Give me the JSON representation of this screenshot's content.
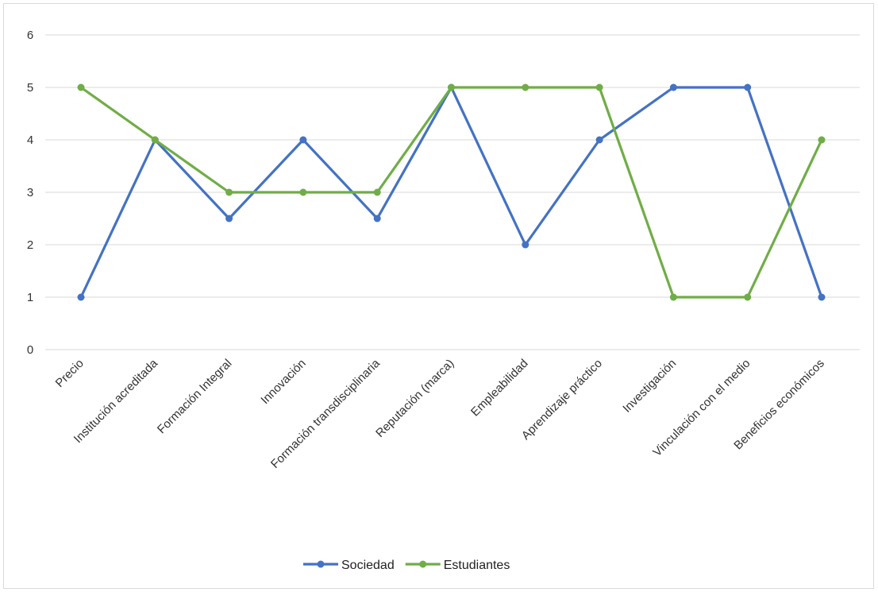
{
  "chart_data": {
    "type": "line",
    "title": "",
    "xlabel": "",
    "ylabel": "",
    "categories": [
      "Precio",
      "Institución acreditada",
      "Formación Integral",
      "Innovación",
      "Formación transdisciplinaria",
      "Reputación (marca)",
      "Empleabilidad",
      "Aprendizaje práctico",
      "Investigación",
      "Vinculación con el medio",
      "Beneficios económicos"
    ],
    "series": [
      {
        "name": "Sociedad",
        "color": "#4472c4",
        "values": [
          1,
          4,
          2.5,
          4,
          2.5,
          5,
          2,
          4,
          5,
          5,
          1
        ]
      },
      {
        "name": "Estudiantes",
        "color": "#70ad47",
        "values": [
          5,
          4,
          3,
          3,
          3,
          5,
          5,
          5,
          1,
          1,
          4
        ]
      }
    ],
    "ylim": [
      0,
      6
    ],
    "yticks": [
      "0",
      "1",
      "2",
      "3",
      "4",
      "5",
      "6"
    ],
    "grid": true,
    "legend_position": "bottom"
  }
}
